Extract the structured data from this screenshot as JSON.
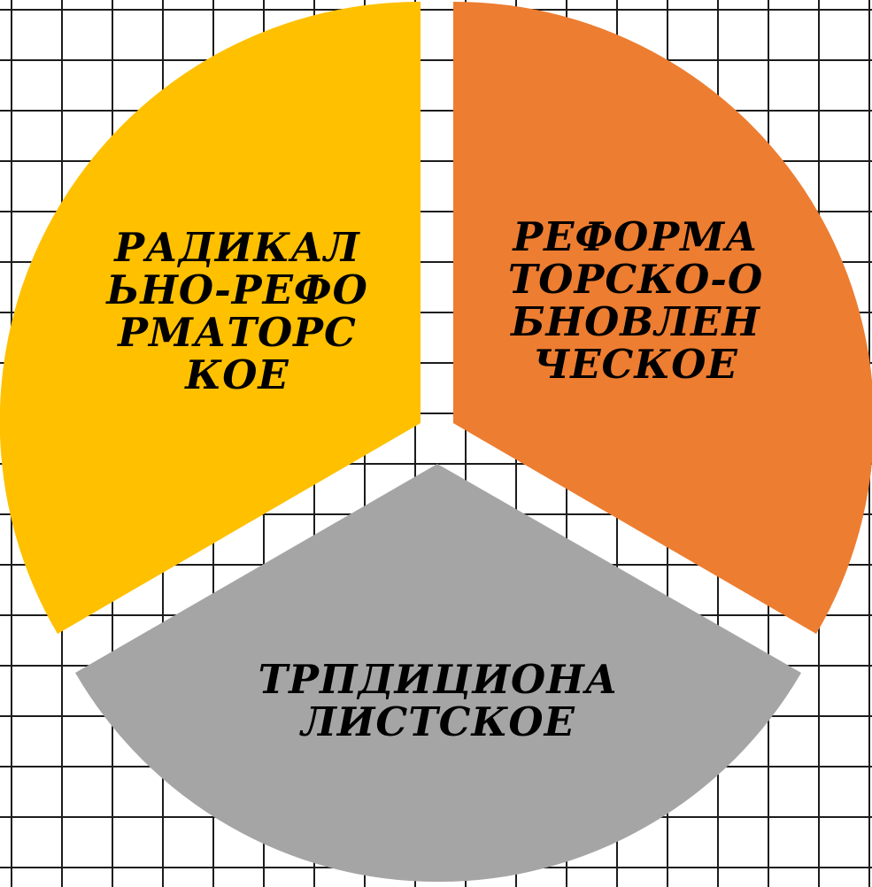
{
  "segments": [
    {
      "id": "left",
      "label": "РАДИКАЛЬНО-РЕФОРМАТОРСКОЕ",
      "color": "#FFC000"
    },
    {
      "id": "right",
      "label": "РЕФОРМАТОРСКО-ОБНОВЛЕНЧЕСКОЕ",
      "color": "#ED7D31"
    },
    {
      "id": "bottom",
      "label": "ТРПДИЦИОНАЛИСТСКОЕ",
      "color": "#A5A5A5"
    }
  ]
}
